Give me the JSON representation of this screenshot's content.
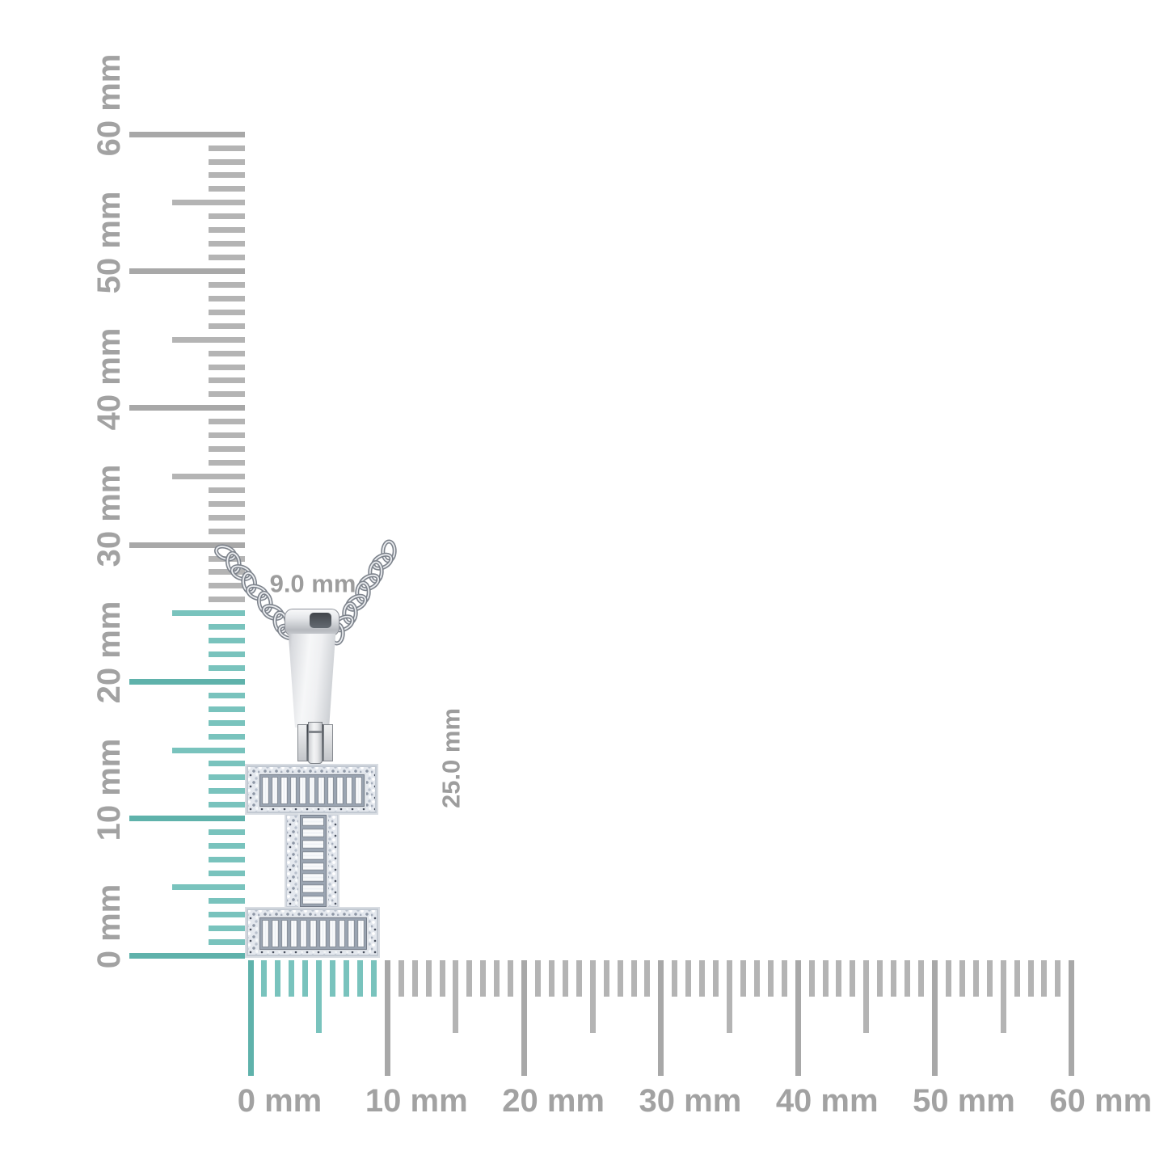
{
  "canvas": {
    "background": "#ffffff"
  },
  "rulers": {
    "unit": "mm",
    "tick_color": "#b4b4b4",
    "tick_color_major": "#a8a8a8",
    "highlight_color": "#79c3bd",
    "highlight_color_major": "#5fb2ab",
    "label_color": "#a2a2a2",
    "vertical": {
      "min": 0,
      "max": 60,
      "label_step_mm": 10,
      "highlight_max_mm": 25,
      "labels": [
        "0 mm",
        "10 mm",
        "20 mm",
        "30 mm",
        "40 mm",
        "50 mm",
        "60 mm"
      ]
    },
    "horizontal": {
      "min": 0,
      "max": 60,
      "label_step_mm": 10,
      "highlight_max_mm": 9,
      "labels": [
        "0 mm",
        "10 mm",
        "20 mm",
        "30 mm",
        "40 mm",
        "50 mm",
        "60 mm"
      ]
    }
  },
  "dimensions": {
    "width_label": "9.0 mm",
    "height_label": "25.0 mm",
    "color": "#9d9d9d"
  },
  "pendant": {
    "type": "initial-letter-diamond-pendant",
    "letter": "I",
    "metal_color": "#e4e8ee",
    "top_bar_baguettes": 11,
    "stem_baguettes": 8,
    "bottom_bar_baguettes": 11,
    "chain": {
      "style": "curb",
      "links_per_side": 9
    }
  }
}
